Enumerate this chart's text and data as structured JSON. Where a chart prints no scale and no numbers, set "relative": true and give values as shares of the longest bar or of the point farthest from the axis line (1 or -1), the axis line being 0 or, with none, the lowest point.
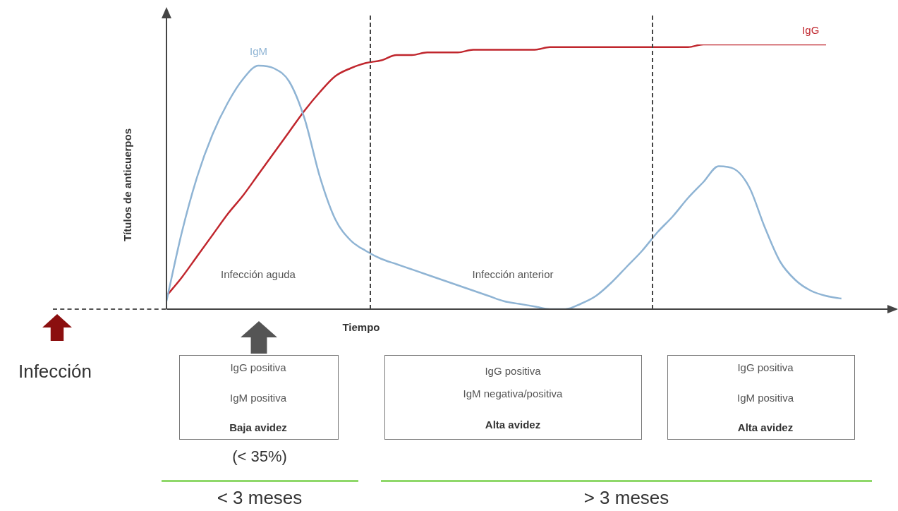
{
  "chart_data": {
    "type": "line",
    "relative": true,
    "xlabel": "Tiempo",
    "ylabel": "Títulos de anticuerpos",
    "categories": [
      null,
      null,
      null,
      null,
      null,
      null,
      null,
      null,
      null,
      null,
      null,
      null,
      null,
      null,
      null,
      null,
      null,
      null,
      null,
      null,
      null,
      null,
      null,
      null,
      null,
      null,
      null,
      null,
      null,
      null,
      null,
      null,
      null,
      null,
      null,
      null,
      null,
      null,
      null,
      null,
      null,
      null,
      null,
      null,
      null,
      null,
      null,
      null
    ],
    "series": [
      {
        "name": "IgM",
        "color": "#8fb4d4",
        "values": [
          0.03,
          0.29,
          0.5,
          0.66,
          0.78,
          0.87,
          0.92,
          0.91,
          0.86,
          0.72,
          0.5,
          0.34,
          0.26,
          0.22,
          0.19,
          0.17,
          0.15,
          0.13,
          0.11,
          0.09,
          0.07,
          0.05,
          0.03,
          0.02,
          0.01,
          0,
          0,
          0.02,
          0.05,
          0.1,
          0.16,
          0.22,
          0.29,
          0.35,
          0.42,
          0.48,
          0.54,
          0.53,
          0.46,
          0.31,
          0.18,
          0.11,
          0.07,
          0.05,
          0.04,
          null,
          null,
          null
        ]
      },
      {
        "name": "IgG",
        "color": "#c0262d",
        "values": [
          0.05,
          0.12,
          0.2,
          0.28,
          0.36,
          0.43,
          0.51,
          0.59,
          0.67,
          0.75,
          0.82,
          0.88,
          0.91,
          0.93,
          0.94,
          0.96,
          0.96,
          0.97,
          0.97,
          0.97,
          0.98,
          0.98,
          0.98,
          0.98,
          0.98,
          0.99,
          0.99,
          0.99,
          0.99,
          0.99,
          0.99,
          0.99,
          0.99,
          0.99,
          0.99,
          1,
          1,
          1,
          1,
          1,
          1,
          1,
          1,
          1,
          null,
          null,
          null,
          null
        ]
      }
    ],
    "annotations": [
      "Infección aguda",
      "Infección anterior",
      "Infección",
      "IgG positiva",
      "IgM positiva",
      "Baja avidez",
      "(< 35%)",
      "IgG positiva",
      "IgM negativa/positiva",
      "Alta avidez",
      "IgG positiva",
      "IgM positiva",
      "Alta avidez",
      "< 3 meses",
      "> 3 meses"
    ],
    "legend": false,
    "marker": "none",
    "line_style": "solid"
  }
}
